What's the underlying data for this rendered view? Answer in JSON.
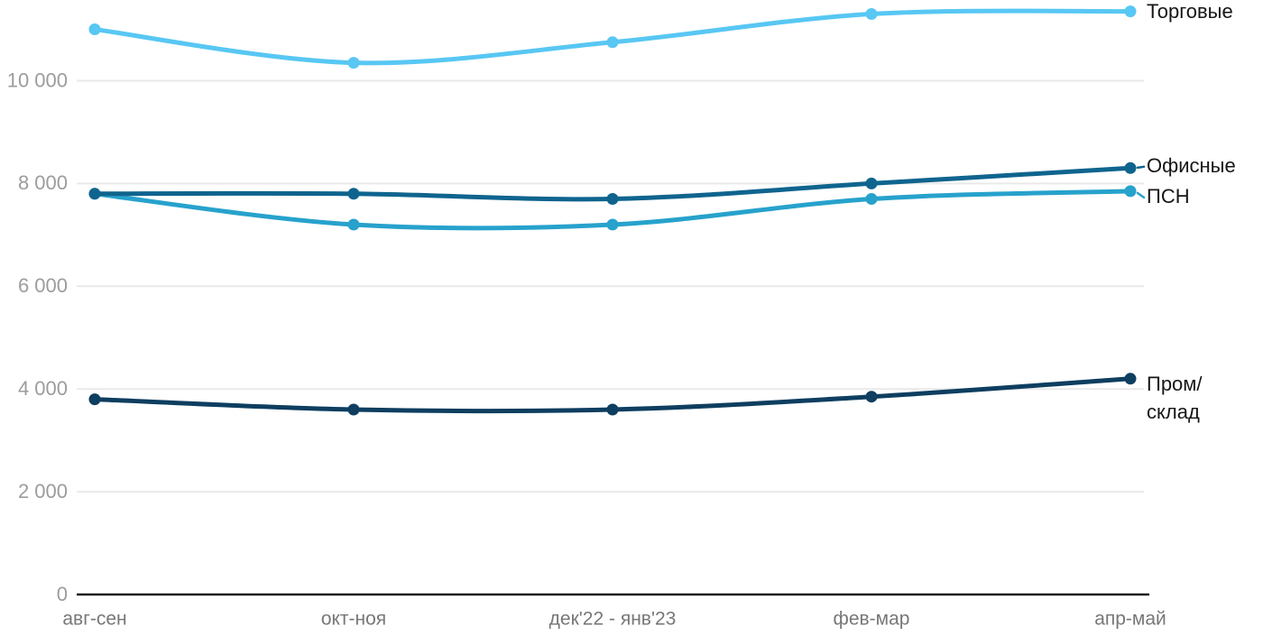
{
  "chart_data": {
    "type": "line",
    "title": "",
    "xlabel": "",
    "ylabel": "",
    "grid": true,
    "legend_position": "end-of-line-labels-right",
    "categories": [
      "авг-сен",
      "окт-ноя",
      "дек'22 - янв'23",
      "фев-мар",
      "апр-май"
    ],
    "series": [
      {
        "id": "torgovye",
        "name": "Торговые",
        "color": "#58c7f3",
        "values": [
          11000,
          10350,
          10750,
          11300,
          11350
        ],
        "label_lines": [
          "Торговые"
        ],
        "leader_dash": false
      },
      {
        "id": "ofisnye",
        "name": "Офисные",
        "color": "#0f648e",
        "values": [
          7800,
          7800,
          7700,
          8000,
          8300
        ],
        "label_lines": [
          "Офисные"
        ],
        "leader_dash": true
      },
      {
        "id": "psn",
        "name": "ПСН",
        "color": "#27a2cc",
        "values": [
          7800,
          7200,
          7200,
          7700,
          7850
        ],
        "label_lines": [
          "ПСН"
        ],
        "leader_dash": true
      },
      {
        "id": "prom-sklad",
        "name": "Пром/склад",
        "color": "#0e3e60",
        "values": [
          3800,
          3600,
          3600,
          3850,
          4200
        ],
        "label_lines": [
          "Пром/",
          "склад"
        ],
        "leader_dash": false
      }
    ],
    "yticks": [
      {
        "value": 0,
        "label": "0"
      },
      {
        "value": 2000,
        "label": "2 000"
      },
      {
        "value": 4000,
        "label": "4 000"
      },
      {
        "value": 6000,
        "label": "6 000"
      },
      {
        "value": 8000,
        "label": "8 000"
      },
      {
        "value": 10000,
        "label": "10 000"
      }
    ],
    "ylim": [
      0,
      11600
    ]
  },
  "colors": {
    "background": "#ffffff",
    "grid": "#e9e9e9",
    "axis": "#1a1a1a",
    "ytick_text": "#9c9c9c",
    "xtick_text": "#777777",
    "series_label_text": "#161616"
  }
}
